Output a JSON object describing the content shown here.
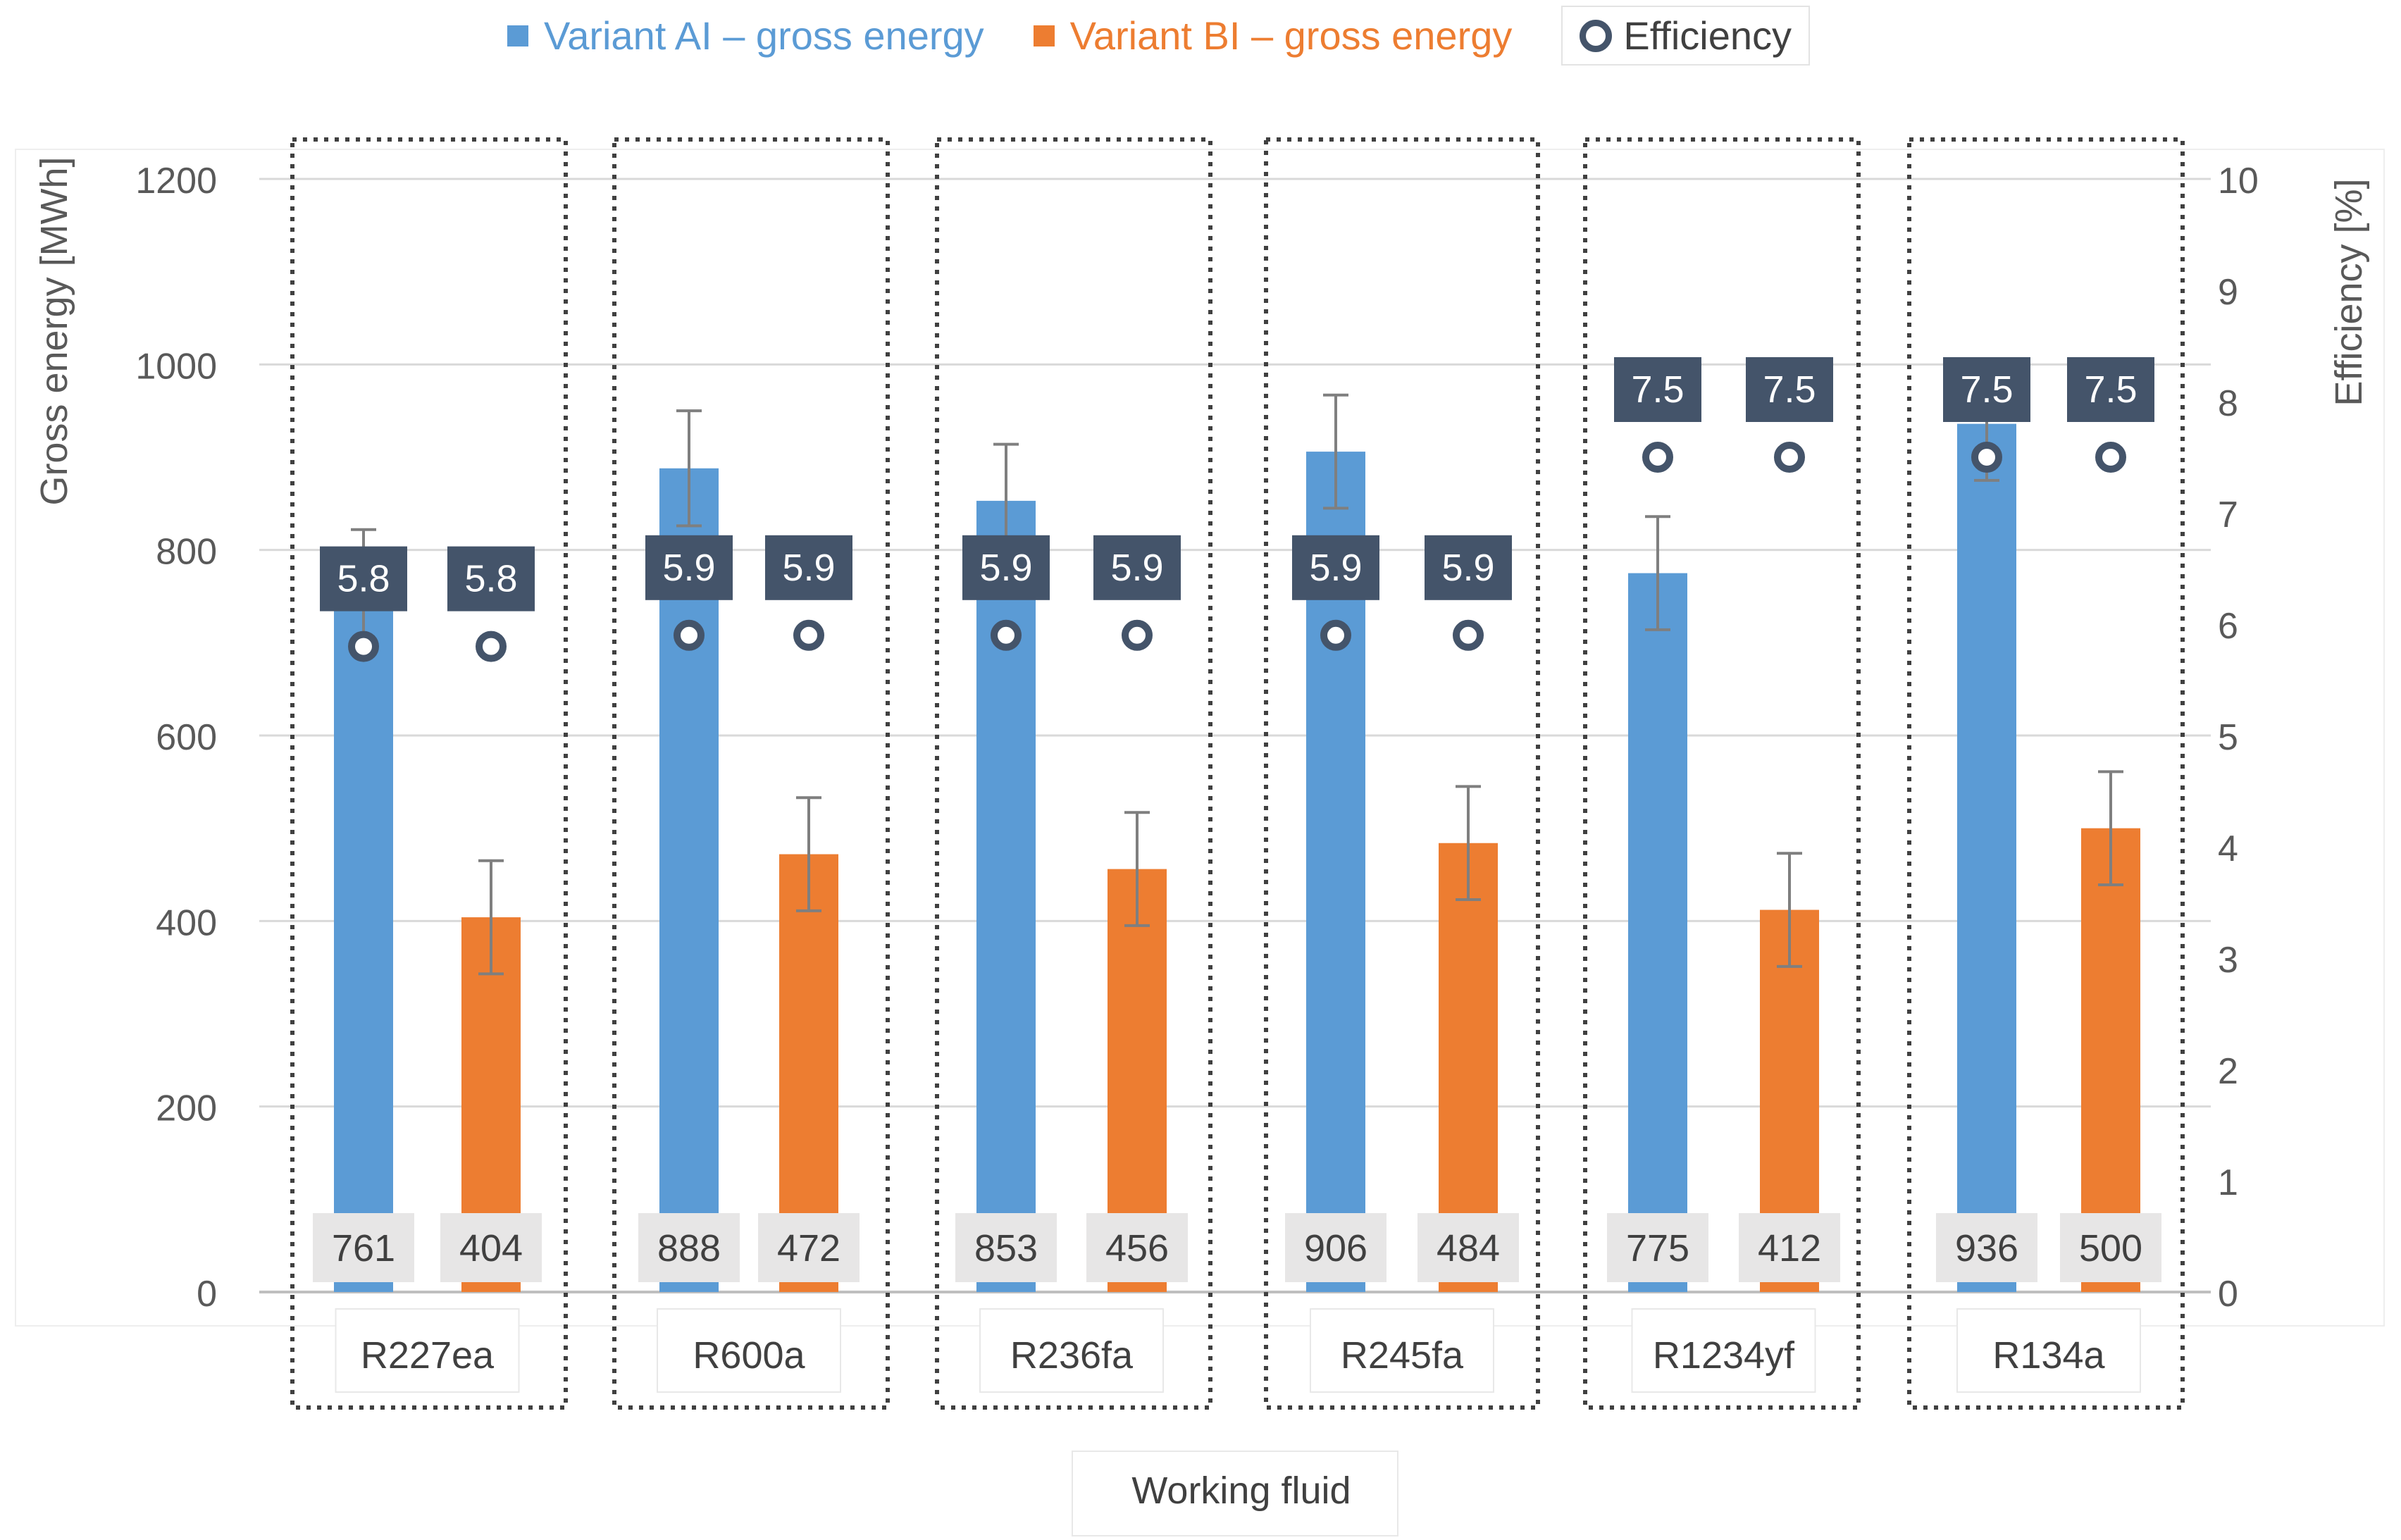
{
  "legend": {
    "series_a": "Variant AI – gross energy",
    "series_b": "Variant BI – gross energy",
    "efficiency": "Efficiency"
  },
  "colors": {
    "series_a": "#5b9bd5",
    "series_b": "#ed7d31",
    "efficiency": "#44546a",
    "grid": "#d9d9d9",
    "axis_text": "#595959",
    "value_label_bg": "#e7e6e6"
  },
  "chart_data": {
    "type": "bar",
    "title": "",
    "xlabel": "Working fluid",
    "ylabel": "Gross energy [MWh]",
    "y2label": "Efficiency [%]",
    "ylim": [
      0,
      1200
    ],
    "y2lim": [
      0,
      10
    ],
    "yticks": [
      "0",
      "200",
      "400",
      "600",
      "800",
      "1000",
      "1200"
    ],
    "y2ticks": [
      "0",
      "1",
      "2",
      "3",
      "4",
      "5",
      "6",
      "7",
      "8",
      "9",
      "10"
    ],
    "categories": [
      "R227ea",
      "R600a",
      "R236fa",
      "R245fa",
      "R1234yf",
      "R134a"
    ],
    "series": [
      {
        "name": "Variant AI – gross energy",
        "values": [
          761,
          888,
          853,
          906,
          775,
          936
        ],
        "error_high": [
          822,
          950,
          914,
          967,
          836,
          997
        ],
        "error_low": [
          700,
          826,
          792,
          845,
          714,
          875
        ]
      },
      {
        "name": "Variant BI – gross energy",
        "values": [
          404,
          472,
          456,
          484,
          412,
          500
        ],
        "error_high": [
          465,
          533,
          517,
          545,
          473,
          561
        ],
        "error_low": [
          343,
          411,
          395,
          423,
          351,
          439
        ]
      }
    ],
    "efficiency": {
      "name": "Efficiency",
      "values_a": [
        5.8,
        5.9,
        5.9,
        5.9,
        7.5,
        7.5
      ],
      "values_b": [
        5.8,
        5.9,
        5.9,
        5.9,
        7.5,
        7.5
      ]
    },
    "grid": true,
    "legend_position": "top"
  }
}
